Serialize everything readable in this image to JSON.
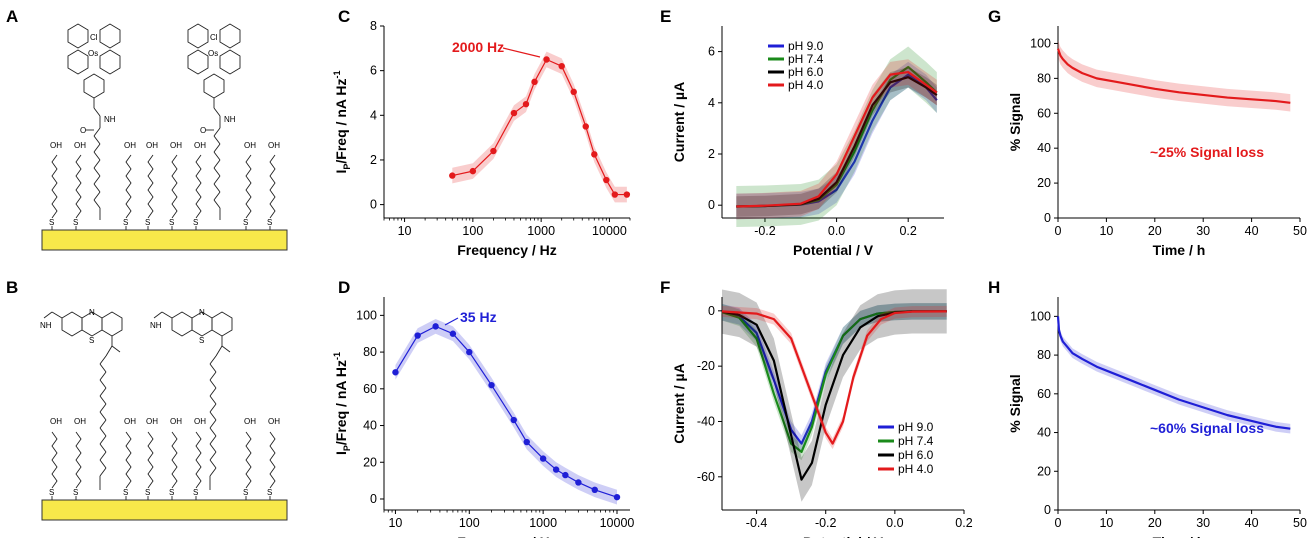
{
  "panel_letters": [
    "A",
    "B",
    "C",
    "D",
    "E",
    "F",
    "G",
    "H"
  ],
  "molecule_labels": {
    "os_center": "Os",
    "chloride": "Cl",
    "nitrogen": "N",
    "amide_h": "NH",
    "sulfur": "S",
    "hydroxyl": "OH",
    "oxygen": "O",
    "mb_nh": "H"
  },
  "colors": {
    "red": "#e31a1c",
    "blue": "#1f1fd6",
    "green": "#1a8a1a",
    "black": "#000000",
    "gold": "#f7e94a",
    "red_band": "#f4a3a3",
    "blue_band": "#a9a9ee"
  },
  "chart_data": [
    {
      "id": "C",
      "type": "line",
      "log_x": true,
      "xlabel": "Frequency / Hz",
      "ylabel_parts": [
        "I",
        "P",
        "/Freq / nA Hz",
        "-1"
      ],
      "xlim": [
        5,
        20000
      ],
      "ylim": [
        -0.6,
        8
      ],
      "xticks": [
        10,
        100,
        1000,
        10000
      ],
      "xtick_labels": [
        "10",
        "100",
        "1000",
        "10000"
      ],
      "yticks": [
        0,
        2,
        4,
        6,
        8
      ],
      "ytick_labels": [
        "0",
        "2",
        "4",
        "6",
        "8"
      ],
      "annotation": "2000 Hz",
      "series": [
        {
          "color": "#e31a1c",
          "x": [
            50,
            100,
            200,
            400,
            600,
            800,
            1200,
            2000,
            3000,
            4500,
            6000,
            9000,
            12000,
            18000
          ],
          "y": [
            1.3,
            1.5,
            2.4,
            4.1,
            4.5,
            5.5,
            6.5,
            6.2,
            5.05,
            3.5,
            2.25,
            1.1,
            0.45,
            0.45
          ],
          "band": 0.35
        }
      ]
    },
    {
      "id": "D",
      "type": "line",
      "log_x": true,
      "xlabel": "Frequency / Hz",
      "ylabel_parts": [
        "I",
        "P",
        "/Freq / nA Hz",
        "-1"
      ],
      "xlim": [
        7,
        15000
      ],
      "ylim": [
        -6,
        110
      ],
      "xticks": [
        10,
        100,
        1000,
        10000
      ],
      "xtick_labels": [
        "10",
        "100",
        "1000",
        "10000"
      ],
      "yticks": [
        0,
        20,
        40,
        60,
        80,
        100
      ],
      "ytick_labels": [
        "0",
        "20",
        "40",
        "60",
        "80",
        "100"
      ],
      "annotation": "35 Hz",
      "series": [
        {
          "color": "#1f1fd6",
          "x": [
            10,
            20,
            35,
            60,
            100,
            200,
            400,
            600,
            1000,
            1500,
            2000,
            3000,
            5000,
            10000
          ],
          "y": [
            69,
            89,
            94,
            90,
            80,
            62,
            43,
            31,
            22,
            16,
            13,
            9,
            5,
            1
          ],
          "band": 4
        }
      ]
    },
    {
      "id": "E",
      "type": "line",
      "xlabel": "Potential / V",
      "ylabel": "Current / µA",
      "xlim": [
        -0.32,
        0.3
      ],
      "ylim": [
        -0.5,
        7
      ],
      "xticks": [
        -0.2,
        0.0,
        0.2
      ],
      "xtick_labels": [
        "-0.2",
        "0.0",
        "0.2"
      ],
      "yticks": [
        0,
        2,
        4,
        6
      ],
      "ytick_labels": [
        "0",
        "2",
        "4",
        "6"
      ],
      "series": [
        {
          "name": "pH 9.0",
          "color": "#1f1fd6",
          "x": [
            -0.28,
            -0.2,
            -0.1,
            -0.05,
            0.0,
            0.05,
            0.1,
            0.15,
            0.2,
            0.25,
            0.28
          ],
          "y": [
            -0.05,
            -0.03,
            0.02,
            0.15,
            0.6,
            1.7,
            3.3,
            4.6,
            5.1,
            4.6,
            4.1
          ],
          "band": 0.5
        },
        {
          "name": "pH 7.4",
          "color": "#1a8a1a",
          "x": [
            -0.28,
            -0.2,
            -0.1,
            -0.05,
            0.0,
            0.05,
            0.1,
            0.15,
            0.2,
            0.25,
            0.28
          ],
          "y": [
            -0.05,
            -0.03,
            0.03,
            0.2,
            0.8,
            2.1,
            3.7,
            4.9,
            5.4,
            4.8,
            4.4
          ],
          "band": 0.8
        },
        {
          "name": "pH 6.0",
          "color": "#000000",
          "x": [
            -0.28,
            -0.2,
            -0.1,
            -0.05,
            0.0,
            0.05,
            0.1,
            0.15,
            0.2,
            0.25,
            0.28
          ],
          "y": [
            -0.05,
            -0.03,
            0.04,
            0.25,
            0.9,
            2.3,
            3.9,
            4.8,
            5.0,
            4.6,
            4.3
          ],
          "band": 0.4
        },
        {
          "name": "pH 4.0",
          "color": "#e31a1c",
          "x": [
            -0.28,
            -0.2,
            -0.1,
            -0.05,
            0.0,
            0.05,
            0.1,
            0.15,
            0.2,
            0.25,
            0.28
          ],
          "y": [
            -0.05,
            -0.02,
            0.06,
            0.35,
            1.2,
            2.7,
            4.2,
            5.1,
            5.2,
            4.7,
            4.4
          ],
          "band": 0.5
        }
      ]
    },
    {
      "id": "F",
      "type": "line",
      "xlabel": "Potential / V",
      "ylabel": "Current / µA",
      "xlim": [
        -0.5,
        0.2
      ],
      "ylim": [
        -72,
        5
      ],
      "xticks": [
        -0.4,
        -0.2,
        0.0,
        0.2
      ],
      "xtick_labels": [
        "-0.4",
        "-0.2",
        "0.0",
        "0.2"
      ],
      "yticks": [
        0,
        -20,
        -40,
        -60
      ],
      "ytick_labels": [
        "0",
        "-20",
        "-40",
        "-60"
      ],
      "series": [
        {
          "name": "pH 9.0",
          "color": "#1f1fd6",
          "x": [
            -0.5,
            -0.45,
            -0.4,
            -0.35,
            -0.3,
            -0.27,
            -0.24,
            -0.2,
            -0.15,
            -0.1,
            -0.05,
            0.0,
            0.05,
            0.15
          ],
          "y": [
            -0.5,
            -2,
            -8,
            -25,
            -43,
            -48,
            -40,
            -22,
            -9,
            -3,
            -1,
            -0.4,
            -0.2,
            -0.2
          ],
          "band": 3
        },
        {
          "name": "pH 7.4",
          "color": "#1a8a1a",
          "x": [
            -0.5,
            -0.45,
            -0.4,
            -0.35,
            -0.3,
            -0.27,
            -0.24,
            -0.2,
            -0.15,
            -0.1,
            -0.05,
            0.0,
            0.05,
            0.15
          ],
          "y": [
            -0.5,
            -2.5,
            -10,
            -30,
            -48,
            -51,
            -42,
            -23,
            -9,
            -3,
            -1,
            -0.4,
            -0.2,
            -0.2
          ],
          "band": 3
        },
        {
          "name": "pH 6.0",
          "color": "#000000",
          "x": [
            -0.5,
            -0.45,
            -0.4,
            -0.35,
            -0.3,
            -0.27,
            -0.24,
            -0.2,
            -0.15,
            -0.1,
            -0.05,
            0.0,
            0.05,
            0.15
          ],
          "y": [
            -0.3,
            -1.5,
            -5,
            -18,
            -45,
            -61,
            -55,
            -34,
            -16,
            -6,
            -2,
            -0.6,
            -0.2,
            -0.2
          ],
          "band": 8
        },
        {
          "name": "pH 4.0",
          "color": "#e31a1c",
          "x": [
            -0.5,
            -0.4,
            -0.35,
            -0.3,
            -0.25,
            -0.2,
            -0.18,
            -0.15,
            -0.12,
            -0.08,
            -0.04,
            0.0,
            0.05,
            0.15
          ],
          "y": [
            -0.2,
            -1,
            -3,
            -10,
            -27,
            -44,
            -48,
            -40,
            -24,
            -9,
            -3,
            -0.8,
            -0.3,
            -0.2
          ],
          "band": 2
        }
      ]
    },
    {
      "id": "G",
      "type": "line",
      "xlabel": "Time / h",
      "ylabel": "% Signal",
      "xlim": [
        0,
        50
      ],
      "ylim": [
        0,
        110
      ],
      "xticks": [
        0,
        10,
        20,
        30,
        40,
        50
      ],
      "xtick_labels": [
        "0",
        "10",
        "20",
        "30",
        "40",
        "50"
      ],
      "yticks": [
        0,
        20,
        40,
        60,
        80,
        100
      ],
      "ytick_labels": [
        "0",
        "20",
        "40",
        "60",
        "80",
        "100"
      ],
      "annotation": "~25% Signal loss",
      "series": [
        {
          "color": "#e31a1c",
          "x": [
            0,
            0.5,
            1,
            2,
            3,
            5,
            8,
            12,
            16,
            20,
            25,
            30,
            35,
            40,
            45,
            48
          ],
          "y": [
            97,
            93,
            91,
            88,
            86,
            83,
            80,
            78,
            76,
            74,
            72,
            70.5,
            69,
            68,
            67,
            66
          ],
          "band": 5
        }
      ]
    },
    {
      "id": "H",
      "type": "line",
      "xlabel": "Time / h",
      "ylabel": "% Signal",
      "xlim": [
        0,
        50
      ],
      "ylim": [
        0,
        110
      ],
      "xticks": [
        0,
        10,
        20,
        30,
        40,
        50
      ],
      "xtick_labels": [
        "0",
        "10",
        "20",
        "30",
        "40",
        "50"
      ],
      "yticks": [
        0,
        20,
        40,
        60,
        80,
        100
      ],
      "ytick_labels": [
        "0",
        "20",
        "40",
        "60",
        "80",
        "100"
      ],
      "annotation": "~60% Signal loss",
      "series": [
        {
          "color": "#1f1fd6",
          "x": [
            0,
            0.2,
            0.5,
            1,
            2,
            3,
            5,
            8,
            12,
            16,
            20,
            25,
            30,
            35,
            40,
            45,
            48
          ],
          "y": [
            100,
            93,
            90,
            87,
            84,
            81,
            78,
            74,
            70,
            66,
            62,
            57,
            53,
            49,
            46,
            43,
            42
          ],
          "band": 2.5
        }
      ]
    }
  ]
}
